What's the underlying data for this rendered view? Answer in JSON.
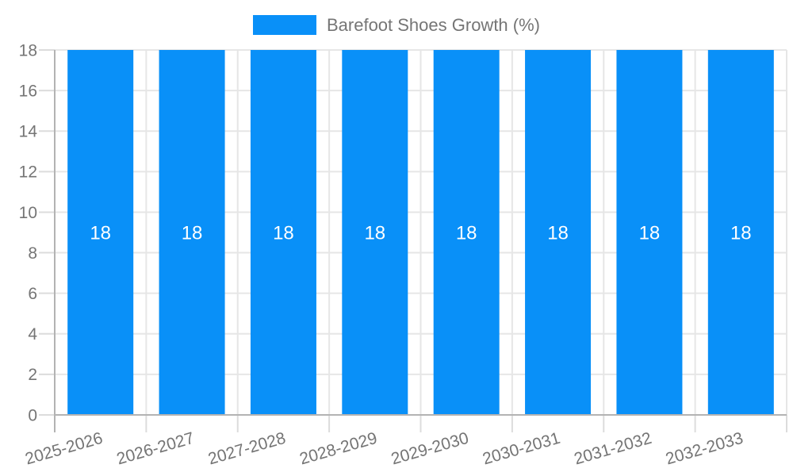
{
  "legend": {
    "label": "Barefoot Shoes Growth (%)"
  },
  "chart_data": {
    "type": "bar",
    "title": "Barefoot Shoes Growth (%)",
    "categories": [
      "2025-2026",
      "2026-2027",
      "2027-2028",
      "2028-2029",
      "2029-2030",
      "2030-2031",
      "2031-2032",
      "2032-2033"
    ],
    "series": [
      {
        "name": "Barefoot Shoes Growth (%)",
        "values": [
          18,
          18,
          18,
          18,
          18,
          18,
          18,
          18
        ]
      }
    ],
    "value_labels": [
      "18",
      "18",
      "18",
      "18",
      "18",
      "18",
      "18",
      "18"
    ],
    "xlabel": "",
    "ylabel": "",
    "ylim": [
      0,
      18
    ],
    "yticks": [
      0,
      2,
      4,
      6,
      8,
      10,
      12,
      14,
      16,
      18
    ],
    "grid": true,
    "legend_position": "top-center",
    "x_label_rotation_deg": -16,
    "colors": {
      "bar": "#0990f8",
      "value_label": "#ffffff",
      "axis_text": "#757575",
      "grid_line": "#e6e6e6",
      "tick_line": "#dcdcdc",
      "axis_line": "#b3b3b3",
      "background": "#ffffff"
    }
  }
}
